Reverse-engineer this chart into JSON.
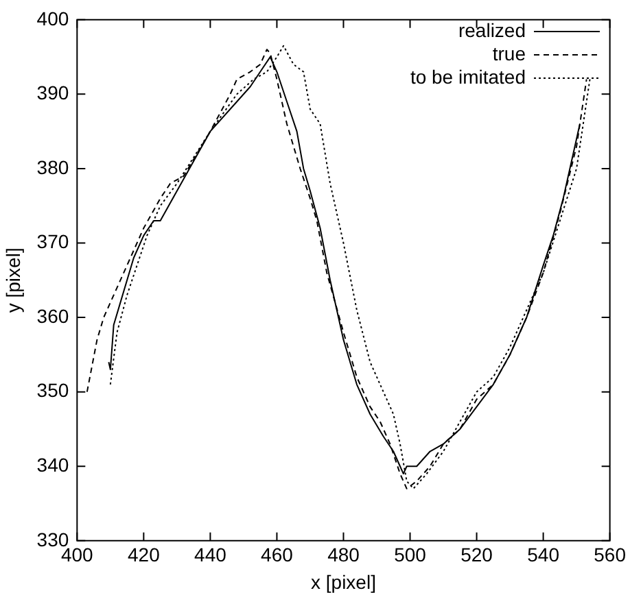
{
  "chart_data": {
    "type": "line",
    "xlabel": "x [pixel]",
    "ylabel": "y [pixel]",
    "xlim": [
      400,
      560
    ],
    "xticks": [
      400,
      420,
      440,
      460,
      480,
      500,
      520,
      540,
      560
    ],
    "ylim": [
      330,
      400
    ],
    "yticks": [
      330,
      340,
      350,
      360,
      370,
      380,
      390,
      400
    ],
    "grid": false,
    "legend": "top right",
    "marker": "none",
    "series": [
      {
        "name": "realized",
        "color": "#000000",
        "line_style": "solid",
        "x": [
          409.5,
          410,
          411,
          413,
          417,
          420,
          423,
          425,
          430,
          440,
          448,
          452,
          455,
          458,
          460,
          463,
          466,
          468,
          470,
          473,
          476,
          480,
          484,
          488,
          492,
          495,
          497,
          498,
          499,
          502,
          506,
          510,
          515,
          520,
          525,
          530,
          535,
          540,
          543,
          546,
          549,
          551
        ],
        "values": [
          354,
          353,
          359,
          362,
          368,
          371,
          373,
          373,
          377,
          385,
          389,
          391,
          393,
          395,
          393,
          389,
          385,
          380,
          377,
          372,
          365,
          357,
          351,
          347,
          344,
          342,
          340,
          339,
          340,
          340,
          342,
          343,
          345,
          348,
          351,
          355,
          360,
          367,
          371,
          376,
          382,
          386
        ]
      },
      {
        "name": "true",
        "color": "#000000",
        "line_style": "dashed",
        "x": [
          403,
          406,
          408,
          412,
          417,
          420,
          425,
          428,
          432,
          440,
          446,
          448,
          452,
          455,
          457,
          458,
          460,
          463,
          467,
          470,
          472,
          475,
          480,
          484,
          488,
          491,
          494,
          497,
          499,
          502,
          506,
          510,
          515,
          520,
          525,
          530,
          535,
          540,
          545,
          550,
          553
        ],
        "values": [
          350,
          357,
          360,
          364,
          369,
          372,
          376,
          378,
          379,
          385,
          390,
          392,
          393,
          394,
          396,
          395.5,
          392,
          386,
          380,
          376,
          373,
          366,
          358,
          352,
          348,
          346,
          343,
          339,
          337,
          338,
          340,
          343,
          345,
          349,
          351,
          355,
          360,
          366,
          374,
          383,
          392
        ]
      },
      {
        "name": "to be imitated",
        "color": "#000000",
        "line_style": "dotted",
        "x": [
          410,
          412,
          415,
          418,
          421,
          425,
          430,
          440,
          448,
          453,
          457,
          460,
          462,
          465,
          468,
          470,
          473,
          476,
          480,
          484,
          488,
          492,
          495,
          497,
          499,
          501,
          505,
          510,
          515,
          520,
          525,
          530,
          535,
          540,
          545,
          550,
          554
        ],
        "values": [
          351,
          358,
          363,
          367,
          371,
          375,
          378,
          385,
          390,
          392,
          393,
          395,
          396.5,
          394,
          393,
          388,
          386,
          378,
          370,
          361,
          354,
          350,
          347,
          343,
          338,
          337,
          339,
          342,
          346,
          350,
          352,
          356,
          361,
          366,
          373,
          380,
          392
        ]
      }
    ]
  }
}
